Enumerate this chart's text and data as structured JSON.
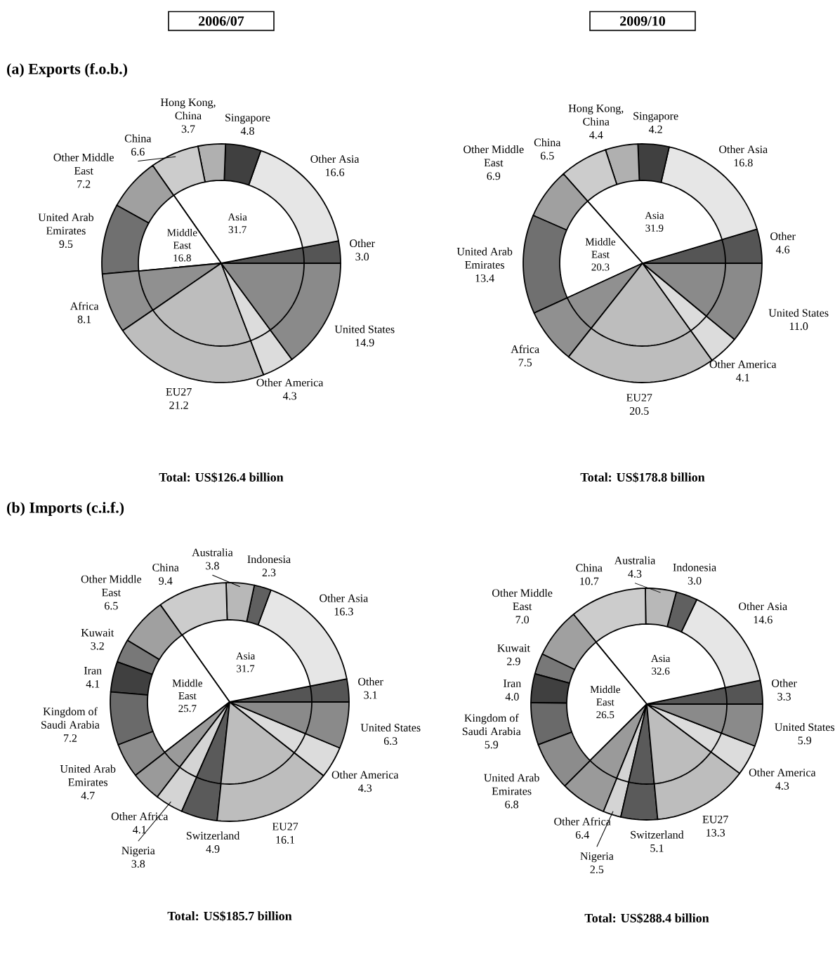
{
  "chart_data": [
    {
      "type": "pie",
      "title": "(a) Exports (f.o.b.)",
      "subtitle": "2006/07",
      "annotations": [
        "Total:   US$126.4 billion"
      ],
      "value_labels": [
        "3.0",
        "16.6",
        "4.8",
        "3.7",
        "6.6",
        "7.2",
        "9.5",
        "8.1",
        "21.2",
        "4.3",
        "14.9"
      ],
      "categories": [
        "Other",
        "Other Asia",
        "Singapore",
        "Hong Kong, China",
        "China",
        "Other Middle East",
        "United Arab Emirates",
        "Africa",
        "EU27",
        "Other America",
        "United States"
      ],
      "values": [
        3.0,
        16.6,
        4.8,
        3.7,
        6.6,
        7.2,
        9.5,
        8.1,
        21.2,
        4.3,
        14.9
      ],
      "colors": [
        "#555555",
        "#e6e6e6",
        "#404040",
        "#b0b0b0",
        "#cccccc",
        "#a0a0a0",
        "#707070",
        "#909090",
        "#bdbdbd",
        "#dcdcdc",
        "#8a8a8a"
      ]
    },
    {
      "type": "pie",
      "categories": [
        null,
        "Asia",
        "Middle East",
        null,
        null,
        null,
        null
      ],
      "values": [
        3.0,
        31.7,
        16.8,
        8.1,
        21.2,
        4.3,
        14.9
      ],
      "value_labels": [
        null,
        "31.7",
        "16.8",
        null,
        null,
        null,
        null
      ],
      "colors": [
        "#555555",
        "#ffffff",
        "#ffffff",
        "#909090",
        "#bdbdbd",
        "#dcdcdc",
        "#8a8a8a"
      ]
    },
    {
      "type": "pie",
      "subtitle": "2009/10",
      "annotations": [
        "Total:   US$178.8 billion"
      ],
      "value_labels": [
        "4.6",
        "16.8",
        "4.2",
        "4.4",
        "6.5",
        "6.9",
        "13.4",
        "7.5",
        "20.5",
        "4.1",
        "11.0"
      ],
      "categories": [
        "Other",
        "Other Asia",
        "Singapore",
        "Hong Kong, China",
        "China",
        "Other Middle East",
        "United Arab Emirates",
        "Africa",
        "EU27",
        "Other America",
        "United States"
      ],
      "values": [
        4.6,
        16.8,
        4.2,
        4.4,
        6.5,
        6.9,
        13.4,
        7.5,
        20.5,
        4.1,
        11.0
      ],
      "colors": [
        "#555555",
        "#e6e6e6",
        "#404040",
        "#b0b0b0",
        "#cccccc",
        "#a0a0a0",
        "#707070",
        "#909090",
        "#bdbdbd",
        "#dcdcdc",
        "#8a8a8a"
      ]
    },
    {
      "type": "pie",
      "categories": [
        null,
        "Asia",
        "Middle East",
        null,
        null,
        null,
        null
      ],
      "values": [
        4.6,
        31.9,
        20.3,
        7.5,
        20.5,
        4.1,
        11.0
      ],
      "value_labels": [
        null,
        "31.9",
        "20.3",
        null,
        null,
        null,
        null
      ],
      "colors": [
        "#555555",
        "#ffffff",
        "#ffffff",
        "#909090",
        "#bdbdbd",
        "#dcdcdc",
        "#8a8a8a"
      ]
    },
    {
      "type": "pie",
      "title": "(b) Imports (c.i.f.)",
      "annotations": [
        "Total:   US$185.7 billion"
      ],
      "value_labels": [
        "3.1",
        "16.3",
        "2.3",
        "3.8",
        "9.4",
        "6.5",
        "3.2",
        "4.1",
        "7.2",
        "4.7",
        "4.1",
        "3.8",
        "4.9",
        "16.1",
        "4.3",
        "6.3"
      ],
      "categories": [
        "Other",
        "Other Asia",
        "Indonesia",
        "Australia",
        "China",
        "Other Middle East",
        "Kuwait",
        "Iran",
        "Kingdom of Saudi Arabia",
        "United Arab Emirates",
        "Other Africa",
        "Nigeria",
        "Switzerland",
        "EU27",
        "Other America",
        "United States"
      ],
      "values": [
        3.1,
        16.3,
        2.3,
        3.8,
        9.4,
        6.5,
        3.2,
        4.1,
        7.2,
        4.7,
        4.1,
        3.8,
        4.9,
        16.1,
        4.3,
        6.3
      ],
      "colors": [
        "#555555",
        "#e6e6e6",
        "#606060",
        "#b8b8b8",
        "#cccccc",
        "#a0a0a0",
        "#787878",
        "#404040",
        "#6a6a6a",
        "#8c8c8c",
        "#9a9a9a",
        "#d4d4d4",
        "#5a5a5a",
        "#bdbdbd",
        "#dcdcdc",
        "#8a8a8a"
      ]
    },
    {
      "type": "pie",
      "categories": [
        null,
        "Asia",
        "Middle East",
        null,
        null,
        null,
        null,
        null,
        null
      ],
      "values": [
        3.1,
        31.7,
        25.7,
        4.1,
        3.8,
        4.9,
        16.1,
        4.3,
        6.3
      ],
      "value_labels": [
        null,
        "31.7",
        "25.7",
        null,
        null,
        null,
        null,
        null,
        null
      ],
      "colors": [
        "#555555",
        "#ffffff",
        "#ffffff",
        "#9a9a9a",
        "#d4d4d4",
        "#5a5a5a",
        "#bdbdbd",
        "#dcdcdc",
        "#8a8a8a"
      ]
    },
    {
      "type": "pie",
      "annotations": [
        "Total:   US$288.4 billion"
      ],
      "value_labels": [
        "3.3",
        "14.6",
        "3.0",
        "4.3",
        "10.7",
        "7.0",
        "2.9",
        "4.0",
        "5.9",
        "6.8",
        "6.4",
        "2.5",
        "5.1",
        "13.3",
        "4.3",
        "5.9"
      ],
      "categories": [
        "Other",
        "Other Asia",
        "Indonesia",
        "Australia",
        "China",
        "Other Middle East",
        "Kuwait",
        "Iran",
        "Kingdom of Saudi Arabia",
        "United Arab Emirates",
        "Other Africa",
        "Nigeria",
        "Switzerland",
        "EU27",
        "Other America",
        "United States"
      ],
      "values": [
        3.3,
        14.6,
        3.0,
        4.3,
        10.7,
        7.0,
        2.9,
        4.0,
        5.9,
        6.8,
        6.4,
        2.5,
        5.1,
        13.3,
        4.3,
        5.9
      ],
      "colors": [
        "#555555",
        "#e6e6e6",
        "#606060",
        "#b8b8b8",
        "#cccccc",
        "#a0a0a0",
        "#787878",
        "#404040",
        "#6a6a6a",
        "#8c8c8c",
        "#9a9a9a",
        "#d4d4d4",
        "#5a5a5a",
        "#bdbdbd",
        "#dcdcdc",
        "#8a8a8a"
      ]
    },
    {
      "type": "pie",
      "categories": [
        null,
        "Asia",
        "Middle East",
        null,
        null,
        null,
        null,
        null,
        null
      ],
      "values": [
        3.3,
        32.6,
        26.5,
        6.4,
        2.5,
        5.1,
        13.3,
        4.3,
        5.9
      ],
      "value_labels": [
        null,
        "32.6",
        "26.5",
        null,
        null,
        null,
        null,
        null,
        null
      ],
      "colors": [
        "#555555",
        "#ffffff",
        "#ffffff",
        "#9a9a9a",
        "#d4d4d4",
        "#5a5a5a",
        "#bdbdbd",
        "#dcdcdc",
        "#8a8a8a"
      ]
    }
  ]
}
